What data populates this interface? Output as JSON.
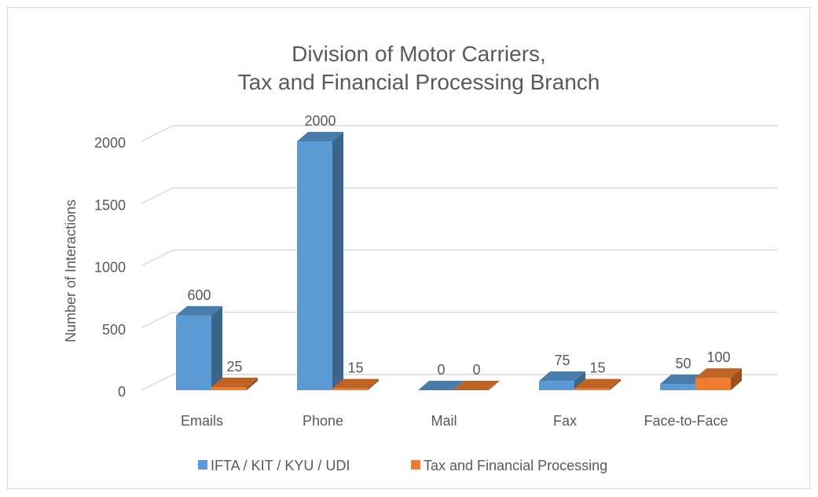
{
  "chart_data": {
    "type": "bar3d",
    "title": [
      "Division of Motor Carriers,",
      "Tax and Financial Processing Branch"
    ],
    "y_label": "Number of Interactions",
    "categories": [
      "Emails",
      "Phone",
      "Mail",
      "Fax",
      "Face-to-Face"
    ],
    "series": [
      {
        "name": "IFTA / KIT / KYU / UDI",
        "color": "#5b9bd5",
        "values": [
          600,
          2000,
          0,
          75,
          50
        ]
      },
      {
        "name": "Tax and Financial Processing",
        "color": "#ed7d31",
        "values": [
          25,
          15,
          0,
          15,
          100
        ]
      }
    ],
    "ylim": [
      0,
      2000
    ],
    "yticks": [
      0,
      500,
      1000,
      1500,
      2000
    ],
    "grid": true,
    "legend": "bottom"
  }
}
